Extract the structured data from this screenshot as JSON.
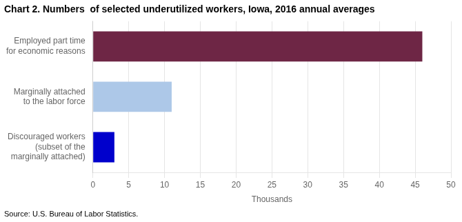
{
  "chart_data": {
    "type": "bar",
    "orientation": "horizontal",
    "title": "Chart 2. Numbers  of selected underutilized workers, Iowa, 2016 annual averages",
    "categories": [
      "Discouraged workers\n(subset of the\nmarginally attached)",
      "Marginally attached\nto the labor force",
      "Employed part time\nfor economic reasons"
    ],
    "values": [
      3.0,
      11.0,
      46.0
    ],
    "colors": [
      "#0000cc",
      "#adc8e8",
      "#6e2645"
    ],
    "xlabel": "Thousands",
    "xlim": [
      0,
      50
    ],
    "xticks": [
      0,
      5,
      10,
      15,
      20,
      25,
      30,
      35,
      40,
      45,
      50
    ],
    "grid": true,
    "annotations": [
      "Source: U.S. Bureau of Labor Statistics."
    ]
  }
}
